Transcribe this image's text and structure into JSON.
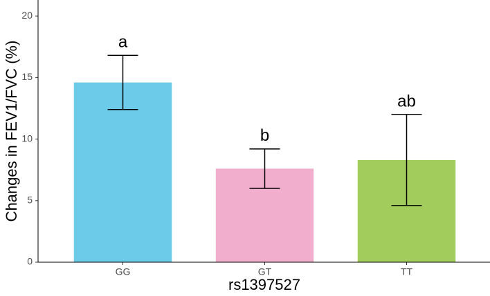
{
  "chart_data": {
    "type": "bar",
    "categories": [
      "GG",
      "GT",
      "TT"
    ],
    "values": [
      14.6,
      7.6,
      8.3
    ],
    "errors": [
      2.2,
      1.6,
      3.7
    ],
    "labels": [
      "a",
      "b",
      "ab"
    ],
    "colors": [
      "#6ccbe8",
      "#f2aecd",
      "#a2cc5c"
    ],
    "ylim": [
      0,
      21.3
    ],
    "yticks": [
      0,
      5,
      10,
      15,
      20
    ],
    "xlabel": "rs1397527",
    "ylabel": "Changes in FEV1/FVC (%)",
    "grid": false
  }
}
